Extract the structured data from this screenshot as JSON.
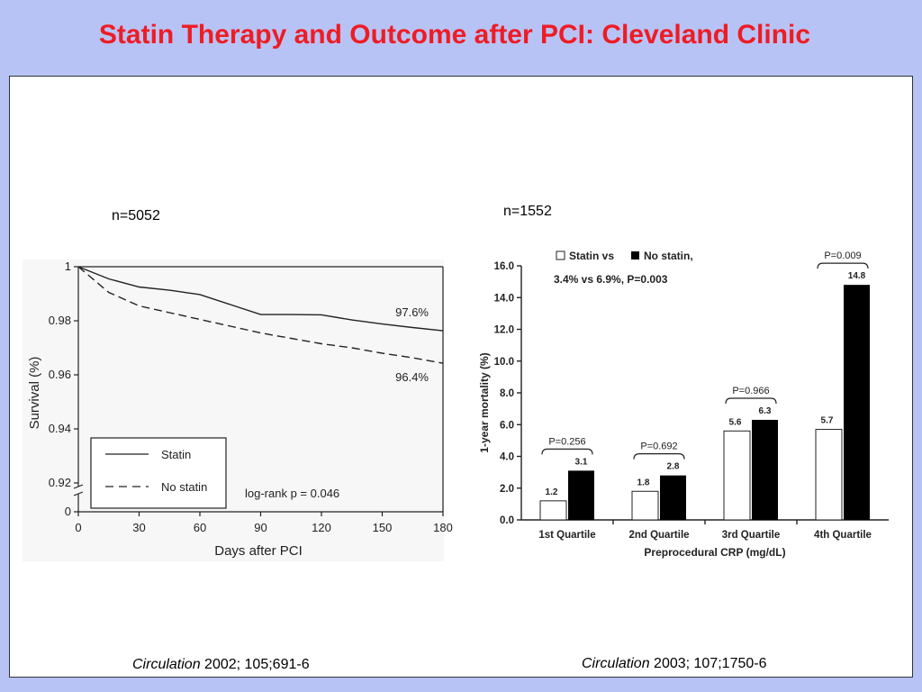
{
  "title": "Statin Therapy and Outcome after PCI: Cleveland Clinic",
  "left": {
    "n_label": "n=5052",
    "citation_journal": "Circulation",
    "citation_rest": " 2002; 105;691-6"
  },
  "right": {
    "n_label": "n=1552",
    "citation_journal": "Circulation",
    "citation_rest": " 2003; 107;1750-6"
  },
  "chart_data": [
    {
      "type": "line",
      "xlabel": "Days after PCI",
      "ylabel": "Survival (%)",
      "x_ticks": [
        0,
        30,
        60,
        90,
        120,
        150,
        180
      ],
      "y_ticks": [
        0,
        0.92,
        0.94,
        0.96,
        0.98,
        1
      ],
      "y_tick_labels": [
        "0",
        "0.92",
        "0.94",
        "0.96",
        "0.98",
        "1"
      ],
      "xlim": [
        0,
        180
      ],
      "ylim": [
        0.92,
        1.0
      ],
      "axis_break": true,
      "series": [
        {
          "name": "Statin",
          "dash": "solid",
          "end_label": "97.6%",
          "x": [
            0,
            15,
            30,
            45,
            60,
            75,
            90,
            105,
            120,
            135,
            150,
            165,
            180
          ],
          "y": [
            1.0,
            0.9955,
            0.9925,
            0.9913,
            0.9897,
            0.986,
            0.9823,
            0.9823,
            0.9822,
            0.9803,
            0.9788,
            0.9775,
            0.9763
          ]
        },
        {
          "name": "No statin",
          "dash": "dashed",
          "end_label": "96.4%",
          "x": [
            0,
            15,
            30,
            45,
            60,
            75,
            90,
            105,
            120,
            135,
            150,
            165,
            180
          ],
          "y": [
            1.0,
            0.9905,
            0.9855,
            0.983,
            0.9805,
            0.978,
            0.9755,
            0.9735,
            0.9715,
            0.97,
            0.968,
            0.9663,
            0.9643
          ]
        }
      ],
      "legend": [
        "Statin",
        "No statin"
      ],
      "annotation": "log-rank p = 0.046"
    },
    {
      "type": "bar",
      "xlabel": "Preprocedural CRP (mg/dL)",
      "ylabel": "1-year mortality (%)",
      "categories": [
        "1st Quartile",
        "2nd Quartile",
        "3rd Quartile",
        "4th Quartile"
      ],
      "ylim": [
        0,
        16
      ],
      "y_ticks": [
        "0.0",
        "2.0",
        "4.0",
        "6.0",
        "8.0",
        "10.0",
        "12.0",
        "14.0",
        "16.0"
      ],
      "series": [
        {
          "name": "Statin vs",
          "color": "#ffffff",
          "values": [
            1.2,
            1.8,
            5.6,
            5.7
          ],
          "labels": [
            "1.2",
            "1.8",
            "5.6",
            "5.7"
          ]
        },
        {
          "name": "No statin,",
          "color": "#000000",
          "values": [
            3.1,
            2.8,
            6.3,
            14.8
          ],
          "labels": [
            "3.1",
            "2.8",
            "6.3",
            "14.8"
          ]
        }
      ],
      "p_values": [
        "P=0.256",
        "P=0.692",
        "P=0.966",
        "P=0.009"
      ],
      "legend_line2": "3.4% vs 6.9%, P=0.003"
    }
  ]
}
